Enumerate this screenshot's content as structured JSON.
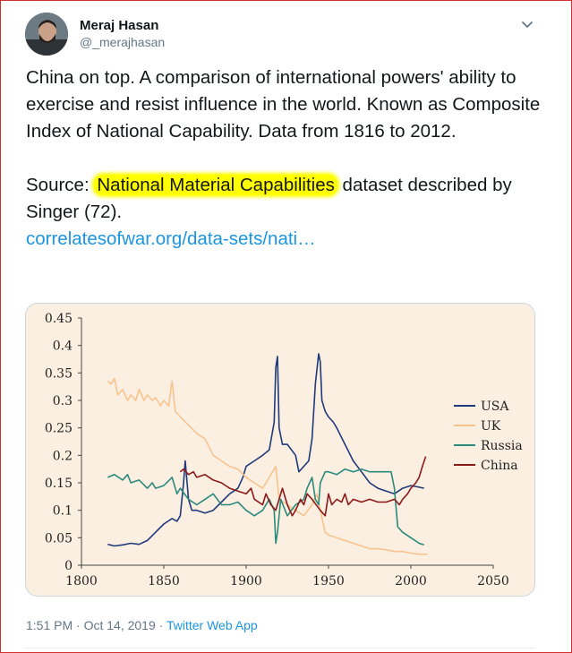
{
  "tweet": {
    "author_name": "Meraj Hasan",
    "author_handle": "@_merajhasan",
    "text_part1": "China on top. A comparison of international powers' ability to exercise and resist influence in the world. Known as Composite Index of National Capability.  Data from 1816 to 2012.",
    "source_prefix": "Source: ",
    "source_highlight": "National Material Capabilities",
    "source_suffix": " dataset described by Singer (72).",
    "link_text": "correlatesofwar.org/data-sets/nati…",
    "time": "1:51 PM",
    "date": "Oct 14, 2019",
    "separator": "·",
    "app": "Twitter Web App"
  },
  "icons": {
    "caret": "chevron-down-icon",
    "avatar": "avatar-photo"
  },
  "colors": {
    "link": "#1b95e0",
    "highlight": "#ffff00",
    "chart_bg": "#fbefe1",
    "usa": "#1f3a7a",
    "uk": "#f7c48f",
    "russia": "#2a8a7c",
    "china": "#8b1a1a"
  },
  "chart_data": {
    "type": "line",
    "title": "",
    "xlabel": "",
    "ylabel": "",
    "xlim": [
      1800,
      2050
    ],
    "ylim": [
      0,
      0.45
    ],
    "x_ticks": [
      "1800",
      "1850",
      "1900",
      "1950",
      "2000",
      "2050"
    ],
    "y_ticks": [
      "0.45",
      "0.4",
      "0.35",
      "0.3",
      "0.25",
      "0.2",
      "0.15",
      "0.1",
      "0.05",
      "0"
    ],
    "legend_position": "right",
    "grid": false,
    "series": [
      {
        "name": "USA",
        "color": "#1f3a7a",
        "points": [
          [
            1816,
            0.038
          ],
          [
            1820,
            0.035
          ],
          [
            1825,
            0.037
          ],
          [
            1830,
            0.04
          ],
          [
            1835,
            0.038
          ],
          [
            1840,
            0.045
          ],
          [
            1845,
            0.06
          ],
          [
            1850,
            0.075
          ],
          [
            1855,
            0.085
          ],
          [
            1858,
            0.08
          ],
          [
            1860,
            0.09
          ],
          [
            1862,
            0.15
          ],
          [
            1863,
            0.19
          ],
          [
            1865,
            0.12
          ],
          [
            1867,
            0.1
          ],
          [
            1870,
            0.1
          ],
          [
            1875,
            0.095
          ],
          [
            1880,
            0.1
          ],
          [
            1885,
            0.115
          ],
          [
            1890,
            0.13
          ],
          [
            1895,
            0.14
          ],
          [
            1898,
            0.16
          ],
          [
            1900,
            0.18
          ],
          [
            1905,
            0.19
          ],
          [
            1910,
            0.2
          ],
          [
            1914,
            0.21
          ],
          [
            1917,
            0.26
          ],
          [
            1918,
            0.36
          ],
          [
            1919,
            0.38
          ],
          [
            1920,
            0.25
          ],
          [
            1922,
            0.22
          ],
          [
            1925,
            0.22
          ],
          [
            1930,
            0.2
          ],
          [
            1932,
            0.17
          ],
          [
            1935,
            0.18
          ],
          [
            1938,
            0.19
          ],
          [
            1940,
            0.23
          ],
          [
            1942,
            0.33
          ],
          [
            1944,
            0.385
          ],
          [
            1945,
            0.37
          ],
          [
            1946,
            0.3
          ],
          [
            1948,
            0.28
          ],
          [
            1950,
            0.27
          ],
          [
            1953,
            0.26
          ],
          [
            1955,
            0.25
          ],
          [
            1960,
            0.22
          ],
          [
            1965,
            0.19
          ],
          [
            1970,
            0.17
          ],
          [
            1975,
            0.15
          ],
          [
            1980,
            0.14
          ],
          [
            1985,
            0.135
          ],
          [
            1990,
            0.13
          ],
          [
            1995,
            0.14
          ],
          [
            2000,
            0.145
          ],
          [
            2005,
            0.142
          ],
          [
            2008,
            0.14
          ]
        ]
      },
      {
        "name": "UK",
        "color": "#f7c48f",
        "points": [
          [
            1816,
            0.335
          ],
          [
            1818,
            0.33
          ],
          [
            1820,
            0.34
          ],
          [
            1822,
            0.31
          ],
          [
            1825,
            0.32
          ],
          [
            1828,
            0.3
          ],
          [
            1830,
            0.31
          ],
          [
            1833,
            0.3
          ],
          [
            1835,
            0.32
          ],
          [
            1838,
            0.3
          ],
          [
            1840,
            0.31
          ],
          [
            1843,
            0.3
          ],
          [
            1845,
            0.305
          ],
          [
            1848,
            0.29
          ],
          [
            1850,
            0.3
          ],
          [
            1853,
            0.29
          ],
          [
            1855,
            0.335
          ],
          [
            1857,
            0.28
          ],
          [
            1860,
            0.27
          ],
          [
            1865,
            0.255
          ],
          [
            1870,
            0.24
          ],
          [
            1875,
            0.23
          ],
          [
            1880,
            0.2
          ],
          [
            1885,
            0.19
          ],
          [
            1890,
            0.18
          ],
          [
            1895,
            0.175
          ],
          [
            1900,
            0.16
          ],
          [
            1905,
            0.15
          ],
          [
            1910,
            0.14
          ],
          [
            1915,
            0.165
          ],
          [
            1918,
            0.18
          ],
          [
            1920,
            0.12
          ],
          [
            1925,
            0.11
          ],
          [
            1930,
            0.1
          ],
          [
            1935,
            0.09
          ],
          [
            1940,
            0.11
          ],
          [
            1943,
            0.13
          ],
          [
            1945,
            0.1
          ],
          [
            1948,
            0.06
          ],
          [
            1950,
            0.055
          ],
          [
            1955,
            0.05
          ],
          [
            1960,
            0.045
          ],
          [
            1965,
            0.04
          ],
          [
            1970,
            0.035
          ],
          [
            1975,
            0.03
          ],
          [
            1980,
            0.03
          ],
          [
            1985,
            0.028
          ],
          [
            1990,
            0.025
          ],
          [
            1995,
            0.025
          ],
          [
            2000,
            0.022
          ],
          [
            2005,
            0.02
          ],
          [
            2010,
            0.02
          ]
        ]
      },
      {
        "name": "Russia",
        "color": "#2a8a7c",
        "points": [
          [
            1816,
            0.16
          ],
          [
            1820,
            0.165
          ],
          [
            1825,
            0.155
          ],
          [
            1828,
            0.165
          ],
          [
            1830,
            0.15
          ],
          [
            1835,
            0.155
          ],
          [
            1840,
            0.14
          ],
          [
            1843,
            0.15
          ],
          [
            1845,
            0.14
          ],
          [
            1850,
            0.145
          ],
          [
            1855,
            0.16
          ],
          [
            1858,
            0.13
          ],
          [
            1860,
            0.14
          ],
          [
            1865,
            0.12
          ],
          [
            1870,
            0.11
          ],
          [
            1875,
            0.12
          ],
          [
            1880,
            0.13
          ],
          [
            1885,
            0.11
          ],
          [
            1890,
            0.11
          ],
          [
            1895,
            0.115
          ],
          [
            1900,
            0.1
          ],
          [
            1905,
            0.09
          ],
          [
            1910,
            0.1
          ],
          [
            1914,
            0.12
          ],
          [
            1917,
            0.1
          ],
          [
            1918,
            0.04
          ],
          [
            1919,
            0.06
          ],
          [
            1921,
            0.12
          ],
          [
            1925,
            0.09
          ],
          [
            1930,
            0.11
          ],
          [
            1935,
            0.12
          ],
          [
            1937,
            0.14
          ],
          [
            1940,
            0.16
          ],
          [
            1942,
            0.12
          ],
          [
            1944,
            0.11
          ],
          [
            1945,
            0.15
          ],
          [
            1948,
            0.17
          ],
          [
            1950,
            0.17
          ],
          [
            1955,
            0.165
          ],
          [
            1960,
            0.175
          ],
          [
            1965,
            0.17
          ],
          [
            1970,
            0.175
          ],
          [
            1975,
            0.17
          ],
          [
            1980,
            0.17
          ],
          [
            1985,
            0.17
          ],
          [
            1988,
            0.17
          ],
          [
            1990,
            0.14
          ],
          [
            1992,
            0.07
          ],
          [
            1995,
            0.06
          ],
          [
            2000,
            0.05
          ],
          [
            2005,
            0.04
          ],
          [
            2008,
            0.037
          ]
        ]
      },
      {
        "name": "China",
        "color": "#8b1a1a",
        "points": [
          [
            1860,
            0.17
          ],
          [
            1862,
            0.175
          ],
          [
            1865,
            0.165
          ],
          [
            1868,
            0.17
          ],
          [
            1870,
            0.16
          ],
          [
            1875,
            0.165
          ],
          [
            1880,
            0.155
          ],
          [
            1885,
            0.15
          ],
          [
            1890,
            0.14
          ],
          [
            1895,
            0.135
          ],
          [
            1900,
            0.13
          ],
          [
            1903,
            0.14
          ],
          [
            1905,
            0.12
          ],
          [
            1910,
            0.11
          ],
          [
            1912,
            0.13
          ],
          [
            1915,
            0.11
          ],
          [
            1918,
            0.1
          ],
          [
            1920,
            0.12
          ],
          [
            1922,
            0.14
          ],
          [
            1925,
            0.11
          ],
          [
            1928,
            0.09
          ],
          [
            1930,
            0.1
          ],
          [
            1933,
            0.12
          ],
          [
            1935,
            0.11
          ],
          [
            1937,
            0.13
          ],
          [
            1940,
            0.12
          ],
          [
            1945,
            0.1
          ],
          [
            1948,
            0.09
          ],
          [
            1950,
            0.13
          ],
          [
            1952,
            0.11
          ],
          [
            1955,
            0.12
          ],
          [
            1958,
            0.115
          ],
          [
            1960,
            0.13
          ],
          [
            1962,
            0.11
          ],
          [
            1965,
            0.12
          ],
          [
            1970,
            0.115
          ],
          [
            1975,
            0.12
          ],
          [
            1980,
            0.115
          ],
          [
            1985,
            0.115
          ],
          [
            1990,
            0.12
          ],
          [
            1993,
            0.11
          ],
          [
            1995,
            0.12
          ],
          [
            1998,
            0.13
          ],
          [
            2000,
            0.14
          ],
          [
            2003,
            0.15
          ],
          [
            2005,
            0.16
          ],
          [
            2007,
            0.18
          ],
          [
            2009,
            0.198
          ]
        ]
      }
    ]
  }
}
